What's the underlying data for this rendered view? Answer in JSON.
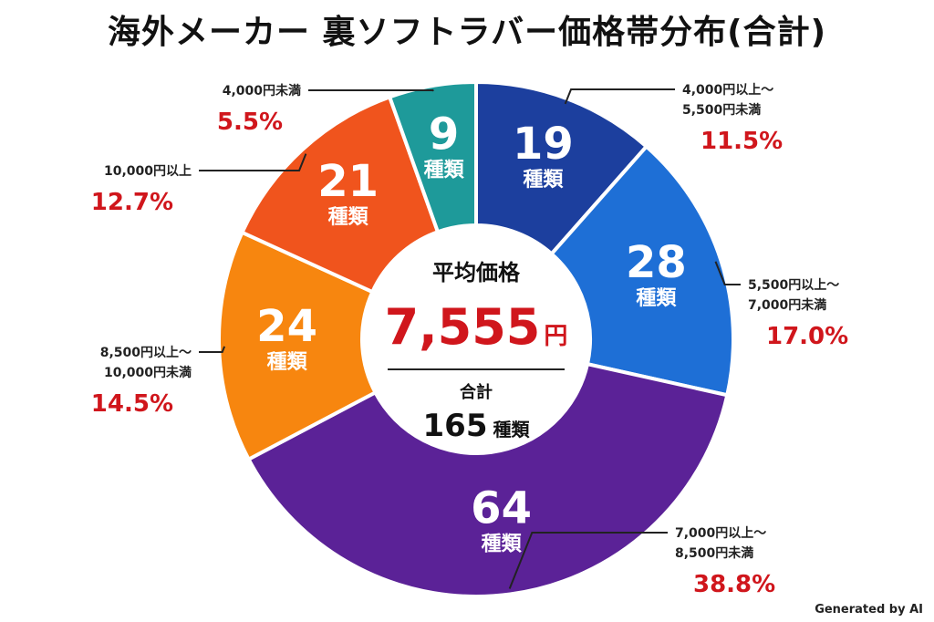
{
  "title": "海外メーカー 裏ソフトラバー価格帯分布(合計)",
  "credit": "Generated by AI",
  "center": {
    "label": "平均価格",
    "price": "7,555",
    "price_unit": "円",
    "total_label": "合計",
    "total_value": "165",
    "total_unit": "種類"
  },
  "chart_data": {
    "type": "pie",
    "title": "海外メーカー 裏ソフトラバー価格帯分布(合計)",
    "unit": "種類",
    "total": 165,
    "segments": [
      {
        "label_lines": [
          "4,000円以上～",
          "5,500円未満"
        ],
        "count": 19,
        "percent": "11.5%",
        "color": "#1c3f9e"
      },
      {
        "label_lines": [
          "5,500円以上～",
          "7,000円未満"
        ],
        "count": 28,
        "percent": "17.0%",
        "color": "#1e6fd6"
      },
      {
        "label_lines": [
          "7,000円以上～",
          "8,500円未満"
        ],
        "count": 64,
        "percent": "38.8%",
        "color": "#5b2297"
      },
      {
        "label_lines": [
          "8,500円以上～",
          "10,000円未満"
        ],
        "count": 24,
        "percent": "14.5%",
        "color": "#f7860f"
      },
      {
        "label_lines": [
          "10,000円以上"
        ],
        "count": 21,
        "percent": "12.7%",
        "color": "#f0541d"
      },
      {
        "label_lines": [
          "4,000円未満"
        ],
        "count": 9,
        "percent": "5.5%",
        "color": "#1e9a9a"
      }
    ]
  }
}
